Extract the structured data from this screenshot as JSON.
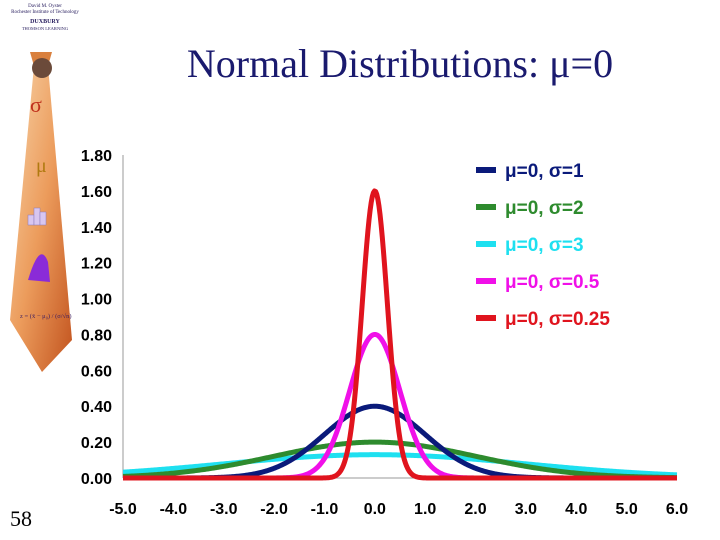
{
  "slide": {
    "title": "Normal Distributions:  μ=0",
    "page_number": "58",
    "logo": {
      "line1": "David M. Oyster",
      "line2": "Rochester Institute of Technology",
      "line3": "DUXBURY",
      "line4": "THOMSON LEARNING"
    },
    "tie_symbols": {
      "sigma": "σ",
      "mu": "μ",
      "formula": "z = (x̄ − μ₀) / (σ/√n)"
    }
  },
  "colors": {
    "title": "#1a1a6e",
    "series": [
      "#0a1a7a",
      "#2e8b2e",
      "#1ee0f0",
      "#f010e8",
      "#e0141e"
    ]
  },
  "chart_data": {
    "type": "line",
    "title": "",
    "xlabel": "",
    "ylabel": "",
    "xlim": [
      -5.0,
      6.0
    ],
    "ylim": [
      0.0,
      1.8
    ],
    "x_ticks": [
      "-5.0",
      "-4.0",
      "-3.0",
      "-2.0",
      "-1.0",
      "0.0",
      "1.0",
      "2.0",
      "3.0",
      "4.0",
      "5.0",
      "6.0"
    ],
    "y_ticks": [
      "0.00",
      "0.20",
      "0.40",
      "0.60",
      "0.80",
      "1.00",
      "1.20",
      "1.40",
      "1.60",
      "1.80"
    ],
    "legend_position": "top-right",
    "grid": false,
    "series": [
      {
        "name": "μ=0, σ=1",
        "mu": 0,
        "sigma": 1,
        "peak": 0.4,
        "color": "#0a1a7a"
      },
      {
        "name": "μ=0, σ=2",
        "mu": 0,
        "sigma": 2,
        "peak": 0.2,
        "color": "#2e8b2e"
      },
      {
        "name": "μ=0, σ=3",
        "mu": 0,
        "sigma": 3,
        "peak": 0.13,
        "color": "#1ee0f0"
      },
      {
        "name": "μ=0, σ=0.5",
        "mu": 0,
        "sigma": 0.5,
        "peak": 0.8,
        "color": "#f010e8"
      },
      {
        "name": "μ=0, σ=0.25",
        "mu": 0,
        "sigma": 0.25,
        "peak": 1.6,
        "color": "#e0141e"
      }
    ]
  }
}
